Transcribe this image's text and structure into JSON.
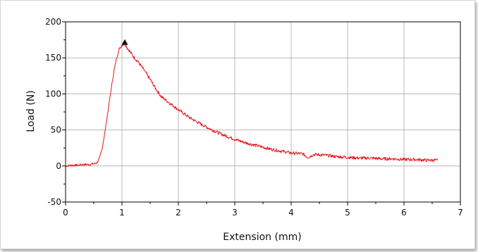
{
  "chart_data": {
    "type": "line",
    "title": "",
    "xlabel": "Extension (mm)",
    "ylabel": "Load (N)",
    "xlim": [
      0,
      7
    ],
    "ylim": [
      -50,
      200
    ],
    "x_ticks": [
      "0",
      "1",
      "2",
      "3",
      "4",
      "5",
      "6",
      "7"
    ],
    "y_ticks": [
      "-50",
      "0",
      "50",
      "100",
      "150",
      "200"
    ],
    "grid": true,
    "legend": "none",
    "series": [
      {
        "color": "#e8141b",
        "x": [
          0.0,
          0.1,
          0.2,
          0.3,
          0.4,
          0.5,
          0.55,
          0.6,
          0.65,
          0.7,
          0.75,
          0.8,
          0.85,
          0.9,
          0.95,
          1.0,
          1.05,
          1.1,
          1.15,
          1.2,
          1.3,
          1.4,
          1.5,
          1.6,
          1.7,
          1.8,
          1.9,
          2.0,
          2.2,
          2.4,
          2.6,
          2.8,
          3.0,
          3.2,
          3.4,
          3.6,
          3.8,
          4.0,
          4.2,
          4.3,
          4.4,
          4.6,
          4.8,
          5.0,
          5.2,
          5.4,
          5.6,
          5.8,
          6.0,
          6.2,
          6.4,
          6.6
        ],
        "y": [
          0,
          1,
          1,
          2,
          2,
          3,
          4,
          10,
          25,
          48,
          75,
          102,
          128,
          148,
          162,
          168,
          170,
          163,
          158,
          152,
          143,
          132,
          120,
          107,
          96,
          90,
          84,
          78,
          67,
          58,
          50,
          43,
          37,
          32,
          28,
          24,
          21,
          18,
          17,
          12,
          16,
          15,
          13,
          12,
          11,
          11,
          10,
          10,
          9,
          9,
          8,
          8
        ]
      }
    ],
    "marker": {
      "shape": "triangle",
      "color": "#111111",
      "x": 1.05,
      "y": 171
    }
  }
}
